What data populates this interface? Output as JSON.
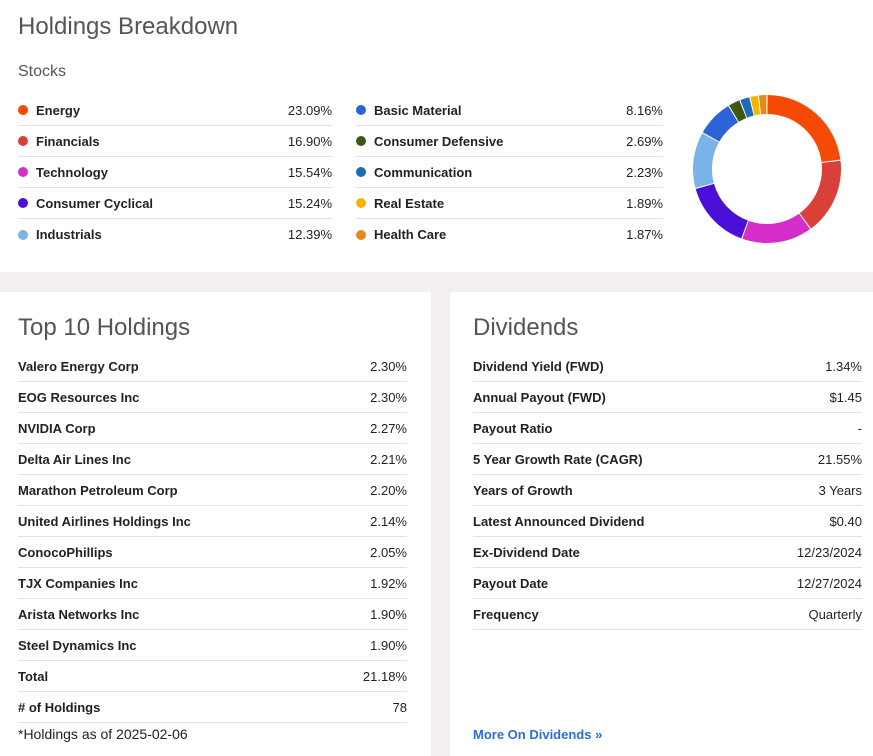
{
  "breakdown": {
    "title": "Holdings Breakdown",
    "subtitle": "Stocks",
    "sectors": [
      {
        "label": "Energy",
        "value": "23.09%",
        "pct": 23.09,
        "color": "#f44a06"
      },
      {
        "label": "Financials",
        "value": "16.90%",
        "pct": 16.9,
        "color": "#d9403a"
      },
      {
        "label": "Technology",
        "value": "15.54%",
        "pct": 15.54,
        "color": "#d52dc8"
      },
      {
        "label": "Consumer Cyclical",
        "value": "15.24%",
        "pct": 15.24,
        "color": "#4a0fd9"
      },
      {
        "label": "Industrials",
        "value": "12.39%",
        "pct": 12.39,
        "color": "#7ab3e8"
      },
      {
        "label": "Basic Material",
        "value": "8.16%",
        "pct": 8.16,
        "color": "#2d63d6"
      },
      {
        "label": "Consumer Defensive",
        "value": "2.69%",
        "pct": 2.69,
        "color": "#3f5713"
      },
      {
        "label": "Communication",
        "value": "2.23%",
        "pct": 2.23,
        "color": "#1a6bb8"
      },
      {
        "label": "Real Estate",
        "value": "1.89%",
        "pct": 1.89,
        "color": "#f6b400"
      },
      {
        "label": "Health Care",
        "value": "1.87%",
        "pct": 1.87,
        "color": "#e38a1a"
      }
    ]
  },
  "top10": {
    "title": "Top 10 Holdings",
    "rows": [
      {
        "label": "Valero Energy Corp",
        "value": "2.30%"
      },
      {
        "label": "EOG Resources Inc",
        "value": "2.30%"
      },
      {
        "label": "NVIDIA Corp",
        "value": "2.27%"
      },
      {
        "label": "Delta Air Lines Inc",
        "value": "2.21%"
      },
      {
        "label": "Marathon Petroleum Corp",
        "value": "2.20%"
      },
      {
        "label": "United Airlines Holdings Inc",
        "value": "2.14%"
      },
      {
        "label": "ConocoPhillips",
        "value": "2.05%"
      },
      {
        "label": "TJX Companies Inc",
        "value": "1.92%"
      },
      {
        "label": "Arista Networks Inc",
        "value": "1.90%"
      },
      {
        "label": "Steel Dynamics Inc",
        "value": "1.90%"
      },
      {
        "label": "Total",
        "value": "21.18%"
      },
      {
        "label": "# of Holdings",
        "value": "78"
      }
    ],
    "note": "*Holdings as of 2025-02-06"
  },
  "dividends": {
    "title": "Dividends",
    "rows": [
      {
        "label": "Dividend Yield (FWD)",
        "value": "1.34%"
      },
      {
        "label": "Annual Payout (FWD)",
        "value": "$1.45"
      },
      {
        "label": "Payout Ratio",
        "value": "-"
      },
      {
        "label": "5 Year Growth Rate (CAGR)",
        "value": "21.55%"
      },
      {
        "label": "Years of Growth",
        "value": "3 Years"
      },
      {
        "label": "Latest Announced Dividend",
        "value": "$0.40"
      },
      {
        "label": "Ex-Dividend Date",
        "value": "12/23/2024"
      },
      {
        "label": "Payout Date",
        "value": "12/27/2024"
      },
      {
        "label": "Frequency",
        "value": "Quarterly"
      }
    ],
    "more_link": "More On Dividends »"
  }
}
